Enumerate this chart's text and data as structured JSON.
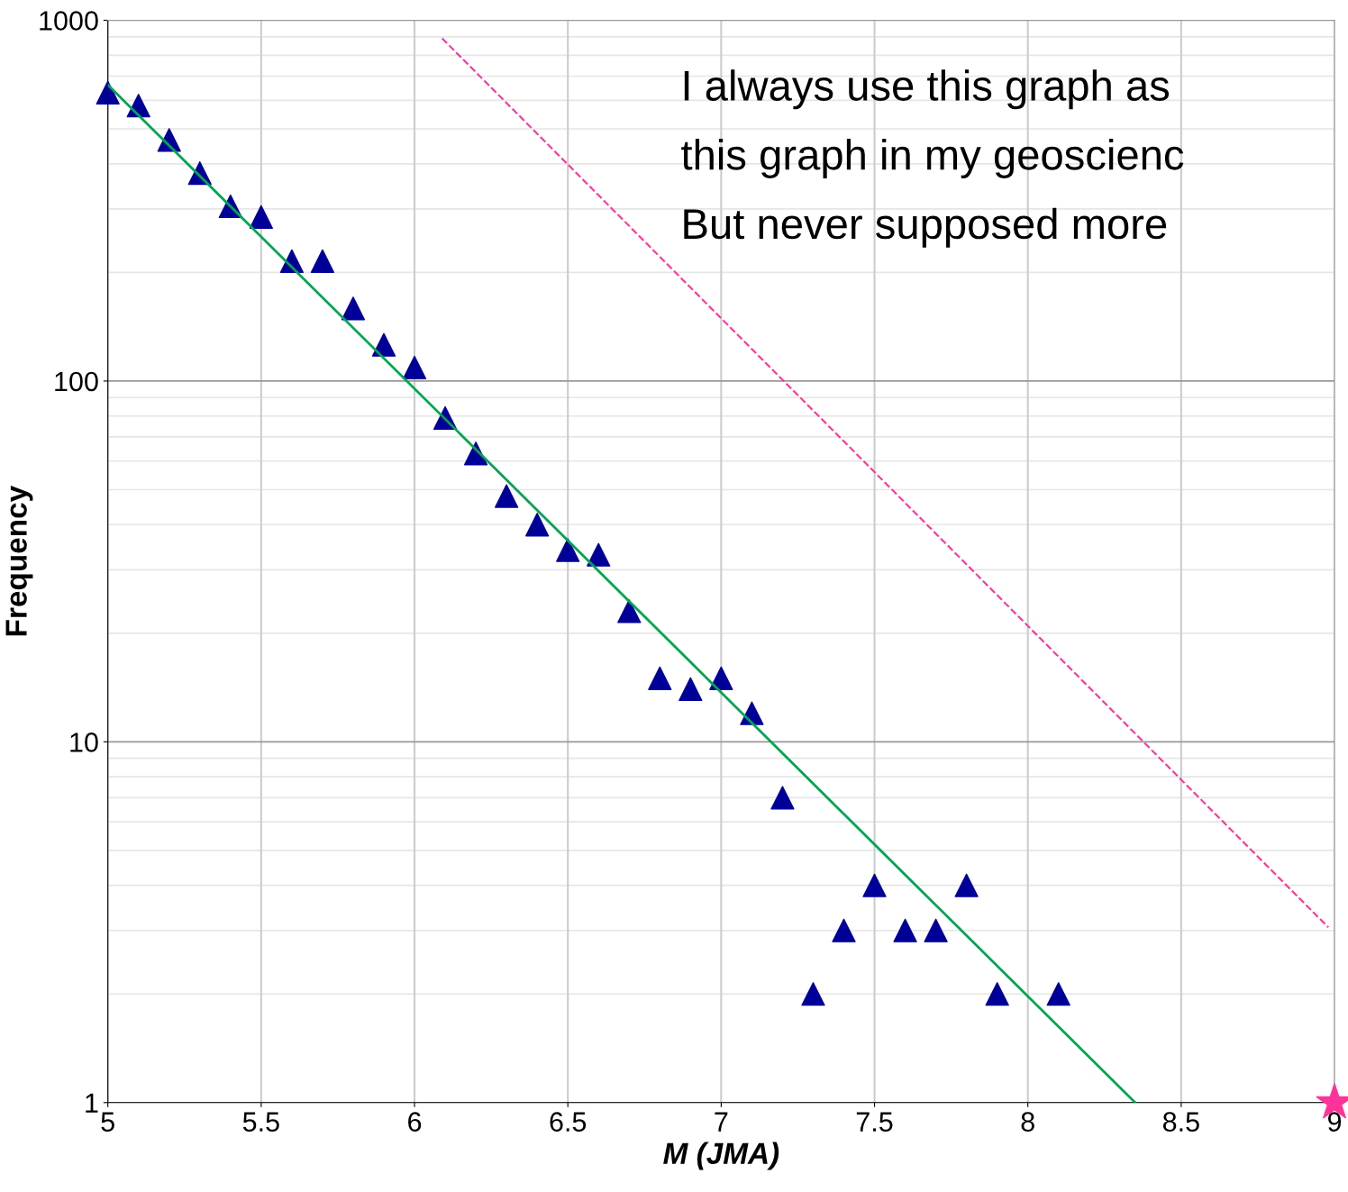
{
  "chart_data": {
    "type": "scatter",
    "xlabel": "M (JMA)",
    "ylabel": "Frequency",
    "log": "y",
    "xlim": [
      5,
      9
    ],
    "xticks": [
      5,
      5.5,
      6,
      6.5,
      7,
      7.5,
      8,
      8.5,
      9
    ],
    "ylim": [
      1,
      1000
    ],
    "yticks": [
      1,
      10,
      100,
      1000
    ],
    "grid": true,
    "annotations": [
      "I always use this graph as",
      "this graph in my geoscienc",
      "But never supposed more"
    ],
    "series": [
      {
        "marker": "triangle",
        "color": "#000099",
        "x": [
          5.0,
          5.1,
          5.2,
          5.3,
          5.4,
          5.5,
          5.6,
          5.7,
          5.8,
          5.9,
          6.0,
          6.1,
          6.2,
          6.3,
          6.4,
          6.5,
          6.6,
          6.7,
          6.8,
          6.9,
          7.0,
          7.1,
          7.2,
          7.3,
          7.4,
          7.5,
          7.6,
          7.7,
          7.8,
          7.9,
          8.1
        ],
        "values": [
          630,
          580,
          466,
          377,
          305,
          285,
          215,
          215,
          159,
          126,
          109,
          79,
          63,
          48,
          40,
          34,
          33,
          23,
          15,
          14,
          15,
          12,
          7,
          2,
          3,
          4,
          3,
          3,
          4,
          2,
          2
        ]
      },
      {
        "type": "line",
        "color": "#00a550",
        "line_style": "solid",
        "x": [
          5.0,
          8.35
        ],
        "values": [
          662,
          1.0
        ]
      },
      {
        "type": "line",
        "color": "#ff3399",
        "line_style": "dashed",
        "x": [
          6.09,
          8.98
        ],
        "values": [
          891,
          3.06
        ]
      },
      {
        "marker": "star",
        "color": "#ff3399",
        "x": [
          9.0
        ],
        "values": [
          1
        ]
      }
    ]
  }
}
